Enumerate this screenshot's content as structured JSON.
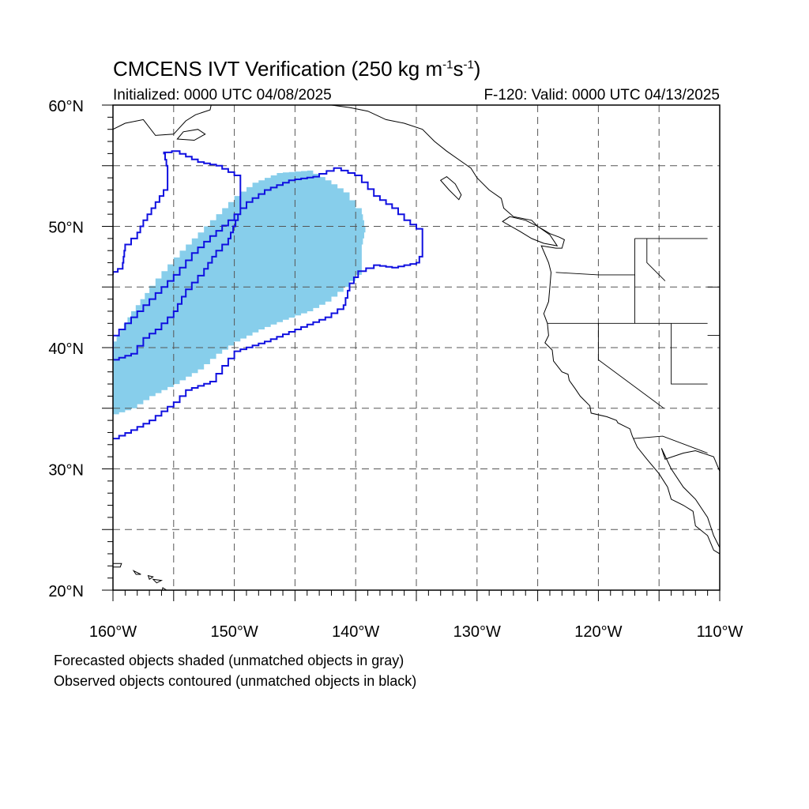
{
  "header": {
    "title_main": "CMCENS IVT Verification (250 kg m",
    "title_sup1": "-1",
    "title_mid": "s",
    "title_sup2": "-1",
    "title_end": ")",
    "initialized": "Initialized: 0000 UTC 04/08/2025",
    "valid": "F-120: Valid: 0000 UTC 04/13/2025"
  },
  "map": {
    "lon_range": [
      -160,
      -110
    ],
    "lat_range": [
      20,
      60
    ],
    "lon_labels": [
      {
        "lon": -160,
        "text": "160°W"
      },
      {
        "lon": -150,
        "text": "150°W"
      },
      {
        "lon": -140,
        "text": "140°W"
      },
      {
        "lon": -130,
        "text": "130°W"
      },
      {
        "lon": -120,
        "text": "120°W"
      },
      {
        "lon": -110,
        "text": "110°W"
      }
    ],
    "lat_labels": [
      {
        "lat": 60,
        "text": "60°N"
      },
      {
        "lat": 50,
        "text": "50°N"
      },
      {
        "lat": 40,
        "text": "40°N"
      },
      {
        "lat": 30,
        "text": "30°N"
      },
      {
        "lat": 20,
        "text": "20°N"
      }
    ],
    "grid_lons": [
      -155,
      -150,
      -145,
      -140,
      -135,
      -130,
      -125,
      -120,
      -115
    ],
    "grid_lats": [
      25,
      30,
      35,
      40,
      45,
      50,
      55
    ],
    "colors": {
      "forecast_fill": "#87ceeb",
      "observed_contour": "#1010e0",
      "coast": "#000000",
      "grid": "#555555"
    },
    "forecast_object": [
      [
        -160,
        34.5
      ],
      [
        -158.5,
        35
      ],
      [
        -157,
        36
      ],
      [
        -155,
        37
      ],
      [
        -153,
        38.2
      ],
      [
        -151.5,
        39.5
      ],
      [
        -150,
        40.5
      ],
      [
        -148,
        41.5
      ],
      [
        -146,
        42.3
      ],
      [
        -144,
        43
      ],
      [
        -142.5,
        43.8
      ],
      [
        -141,
        45
      ],
      [
        -139.5,
        46.5
      ],
      [
        -139.5,
        48.5
      ],
      [
        -139.2,
        50
      ],
      [
        -139.5,
        51.5
      ],
      [
        -140.5,
        52.8
      ],
      [
        -142,
        53.8
      ],
      [
        -143.5,
        54.6
      ],
      [
        -146,
        54.4
      ],
      [
        -148,
        53.6
      ],
      [
        -149.5,
        52.5
      ],
      [
        -151,
        51
      ],
      [
        -152.5,
        49.5
      ],
      [
        -154,
        48
      ],
      [
        -155.5,
        46.3
      ],
      [
        -157,
        44.5
      ],
      [
        -158.5,
        42.5
      ],
      [
        -160,
        40
      ]
    ],
    "observed_objects": [
      [
        [
          -160,
          32.5
        ],
        [
          -158.5,
          33.2
        ],
        [
          -157,
          34
        ],
        [
          -155,
          35.5
        ],
        [
          -154,
          36.5
        ],
        [
          -152,
          37.2
        ],
        [
          -151,
          38.5
        ],
        [
          -150,
          39.7
        ],
        [
          -147.5,
          40.5
        ],
        [
          -145,
          41.5
        ],
        [
          -142.5,
          42.5
        ],
        [
          -141,
          43.5
        ],
        [
          -140.5,
          45.3
        ],
        [
          -139.8,
          46.3
        ],
        [
          -138.5,
          46.8
        ],
        [
          -137,
          46.6
        ],
        [
          -135,
          47
        ],
        [
          -134.5,
          48
        ],
        [
          -134.5,
          49.8
        ],
        [
          -135.5,
          50.5
        ],
        [
          -136.5,
          51.5
        ],
        [
          -138,
          52.5
        ],
        [
          -139.5,
          54.2
        ],
        [
          -141.2,
          54.8
        ],
        [
          -143,
          54.1
        ],
        [
          -145,
          53.8
        ],
        [
          -147,
          53
        ],
        [
          -148.5,
          52
        ],
        [
          -150,
          50.5
        ],
        [
          -151.5,
          49.2
        ],
        [
          -153,
          47.8
        ],
        [
          -154.5,
          46
        ],
        [
          -156,
          44.5
        ],
        [
          -157.5,
          43
        ],
        [
          -159,
          41.5
        ],
        [
          -160,
          40.5
        ],
        [
          -160,
          39
        ],
        [
          -158.5,
          39.5
        ],
        [
          -157.5,
          40.8
        ],
        [
          -156.5,
          41.5
        ],
        [
          -155,
          43
        ],
        [
          -154,
          44.8
        ],
        [
          -152.5,
          46.5
        ],
        [
          -151.5,
          48
        ],
        [
          -150.5,
          49
        ],
        [
          -149.5,
          51.5
        ],
        [
          -149.5,
          54.2
        ],
        [
          -151,
          55
        ],
        [
          -152.5,
          55.3
        ],
        [
          -154.5,
          56.2
        ],
        [
          -155.8,
          56
        ],
        [
          -155.5,
          54.5
        ],
        [
          -155.5,
          53
        ],
        [
          -156.5,
          51.5
        ],
        [
          -157.5,
          50
        ],
        [
          -158,
          49
        ],
        [
          -159,
          48
        ],
        [
          -159.2,
          46.5
        ],
        [
          -160,
          46
        ]
      ]
    ],
    "state_border_pts": [
      [
        [
          -123.5,
          46.2
        ],
        [
          -120,
          46
        ],
        [
          -117,
          46
        ],
        [
          -117,
          49
        ]
      ],
      [
        [
          -124.2,
          42
        ],
        [
          -111,
          42
        ]
      ],
      [
        [
          -120,
          42
        ],
        [
          -120,
          39
        ],
        [
          -114.6,
          35
        ]
      ],
      [
        [
          -117,
          46
        ],
        [
          -117,
          42
        ]
      ],
      [
        [
          -114,
          42
        ],
        [
          -114,
          37
        ],
        [
          -111,
          37
        ]
      ],
      [
        [
          -117.1,
          32.5
        ],
        [
          -114.7,
          32.7
        ],
        [
          -111,
          31.3
        ]
      ],
      [
        [
          -117,
          49
        ],
        [
          -111,
          49
        ]
      ],
      [
        [
          -111,
          45
        ],
        [
          -110,
          45
        ]
      ],
      [
        [
          -111,
          41
        ],
        [
          -110,
          41
        ]
      ],
      [
        [
          -116,
          49
        ],
        [
          -116,
          47
        ],
        [
          -114.5,
          45.5
        ]
      ]
    ]
  },
  "captions": {
    "line1": "Forecasted objects shaded (unmatched objects in gray)",
    "line2": "Observed objects contoured (unmatched objects in black)"
  }
}
